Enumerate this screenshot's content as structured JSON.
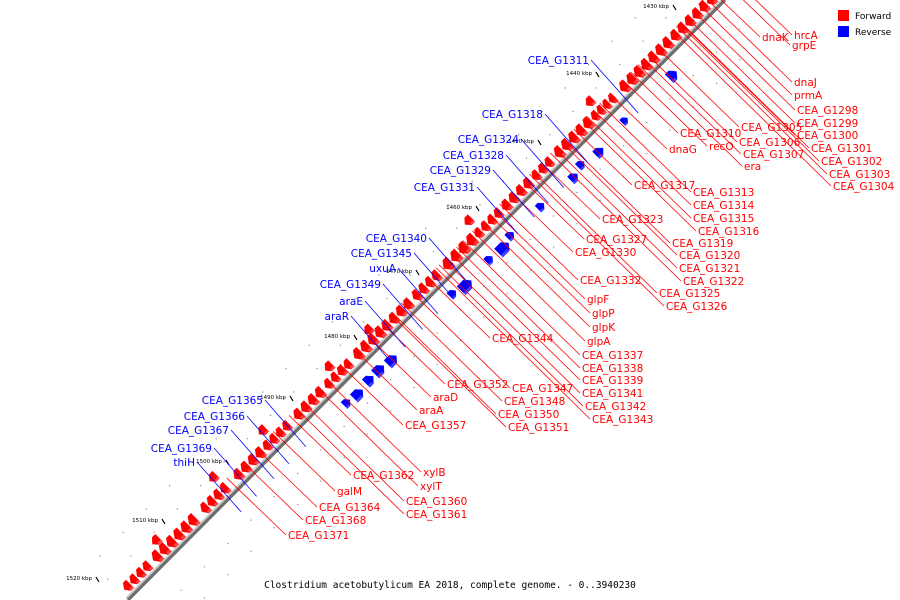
{
  "caption": "Clostridium acetobutylicum EA 2018, complete genome. - 0..3940230",
  "legend": [
    {
      "label": "Forward",
      "color": "#ff0000"
    },
    {
      "label": "Reverse",
      "color": "#0000ff"
    }
  ],
  "ticks": [
    "1430 kbp",
    "1440 kbp",
    "1450 kbp",
    "1460 kbp",
    "1470 kbp",
    "1480 kbp",
    "1490 kbp",
    "1500 kbp",
    "1510 kbp",
    "1520 kbp"
  ],
  "forward_labels": [
    "dnaK",
    "hrcA",
    "grpE",
    "dnaJ",
    "prmA",
    "CEA_G1298",
    "CEA_G1299",
    "CEA_G1300",
    "CEA_G1301",
    "CEA_G1302",
    "CEA_G1303",
    "CEA_G1304",
    "CEA_G1305",
    "CEA_G1306",
    "CEA_G1307",
    "era",
    "recO",
    "CEA_G1310",
    "dnaG",
    "CEA_G1317",
    "CEA_G1313",
    "CEA_G1314",
    "CEA_G1315",
    "CEA_G1316",
    "CEA_G1323",
    "CEA_G1319",
    "CEA_G1327",
    "CEA_G1320",
    "CEA_G1330",
    "CEA_G1321",
    "CEA_G1322",
    "CEA_G1332",
    "CEA_G1325",
    "CEA_G1326",
    "glpF",
    "glpP",
    "glpK",
    "glpA",
    "CEA_G1344",
    "CEA_G1337",
    "CEA_G1338",
    "CEA_G1339",
    "CEA_G1341",
    "CEA_G1342",
    "CEA_G1343",
    "CEA_G1347",
    "CEA_G1352",
    "araD",
    "CEA_G1348",
    "araA",
    "CEA_G1350",
    "CEA_G1351",
    "CEA_G1357",
    "xylB",
    "CEA_G1362",
    "xylT",
    "galM",
    "CEA_G1360",
    "CEA_G1364",
    "CEA_G1361",
    "CEA_G1368",
    "CEA_G1371"
  ],
  "reverse_labels": [
    "CEA_G1311",
    "CEA_G1318",
    "CEA_G1324",
    "CEA_G1328",
    "CEA_G1329",
    "CEA_G1331",
    "CEA_G1340",
    "CEA_G1345",
    "uxuA",
    "CEA_G1349",
    "araE",
    "araR",
    "CEA_G1365",
    "CEA_G1366",
    "CEA_G1367",
    "CEA_G1369",
    "thiH"
  ]
}
